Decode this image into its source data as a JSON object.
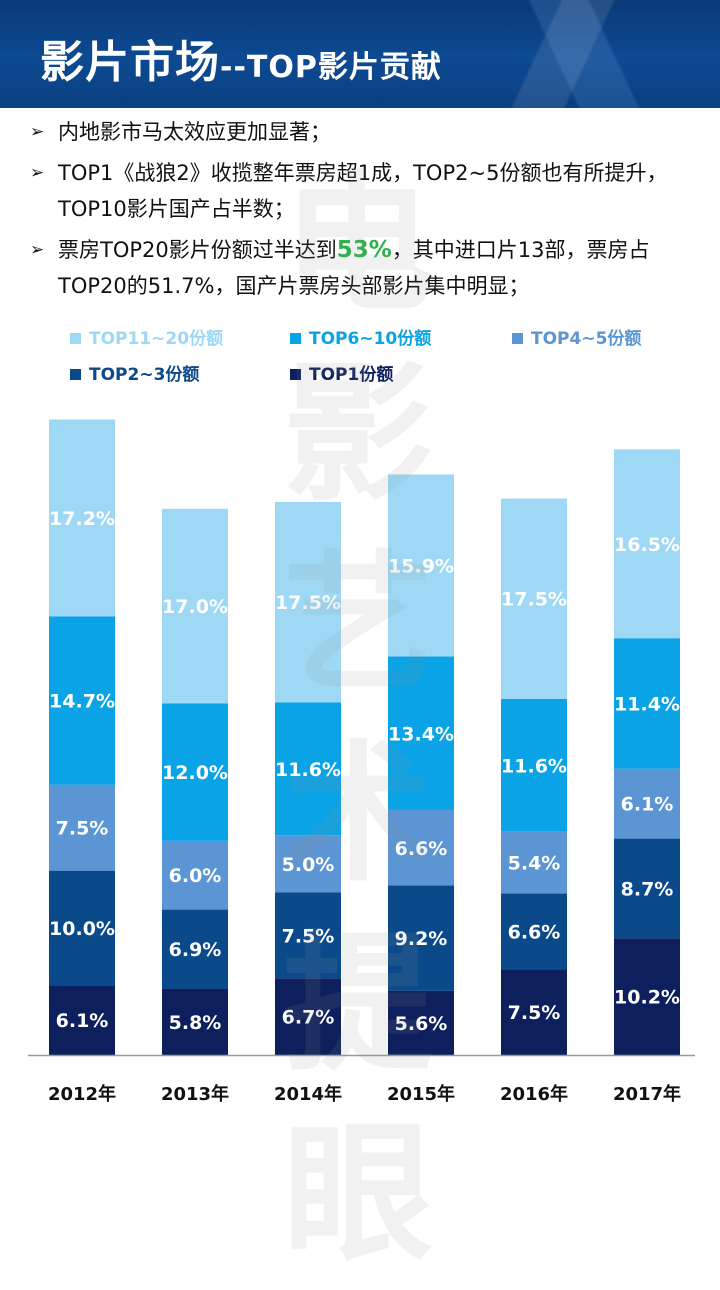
{
  "header": {
    "title_main": "影片市场",
    "title_sub": "--TOP影片贡献"
  },
  "bullets": [
    {
      "text": "内地影市马太效应更加显著；"
    },
    {
      "text": "TOP1《战狼2》收揽整年票房超1成，TOP2~5份额也有所提升，TOP10影片国产占半数；"
    },
    {
      "pre": "票房TOP20影片份额过半达到",
      "highlight": "53%",
      "post": "，其中进口片13部，票房占TOP20的51.7%，国产片票房头部影片集中明显；"
    }
  ],
  "watermark": "电影艺术提眼",
  "colors": {
    "header_bg": "#0d4a92",
    "highlight": "#2db14a"
  },
  "chart_data": {
    "type": "bar",
    "stacked": true,
    "categories": [
      "2012年",
      "2013年",
      "2014年",
      "2015年",
      "2016年",
      "2017年"
    ],
    "series": [
      {
        "name": "TOP1份额",
        "color": "#0d1f5c",
        "values": [
          6.1,
          5.8,
          6.7,
          5.6,
          7.5,
          10.2
        ]
      },
      {
        "name": "TOP2~3份额",
        "color": "#0b4a8a",
        "values": [
          10.0,
          6.9,
          7.5,
          9.2,
          6.6,
          8.7
        ]
      },
      {
        "name": "TOP4~5份额",
        "color": "#5b95d3",
        "values": [
          7.5,
          6.0,
          5.0,
          6.6,
          5.4,
          6.1
        ]
      },
      {
        "name": "TOP6~10份额",
        "color": "#0aa3e6",
        "values": [
          14.7,
          12.0,
          11.6,
          13.4,
          11.6,
          11.4
        ]
      },
      {
        "name": "TOP11~20份额",
        "color": "#9ed8f5",
        "values": [
          17.2,
          17.0,
          17.5,
          15.9,
          17.5,
          16.5
        ]
      }
    ],
    "legend_order": [
      "TOP11~20份额",
      "TOP6~10份额",
      "TOP4~5份额",
      "TOP2~3份额",
      "TOP1份额"
    ],
    "legend_position": "top",
    "grid": false,
    "ylim": [
      0,
      56
    ]
  }
}
